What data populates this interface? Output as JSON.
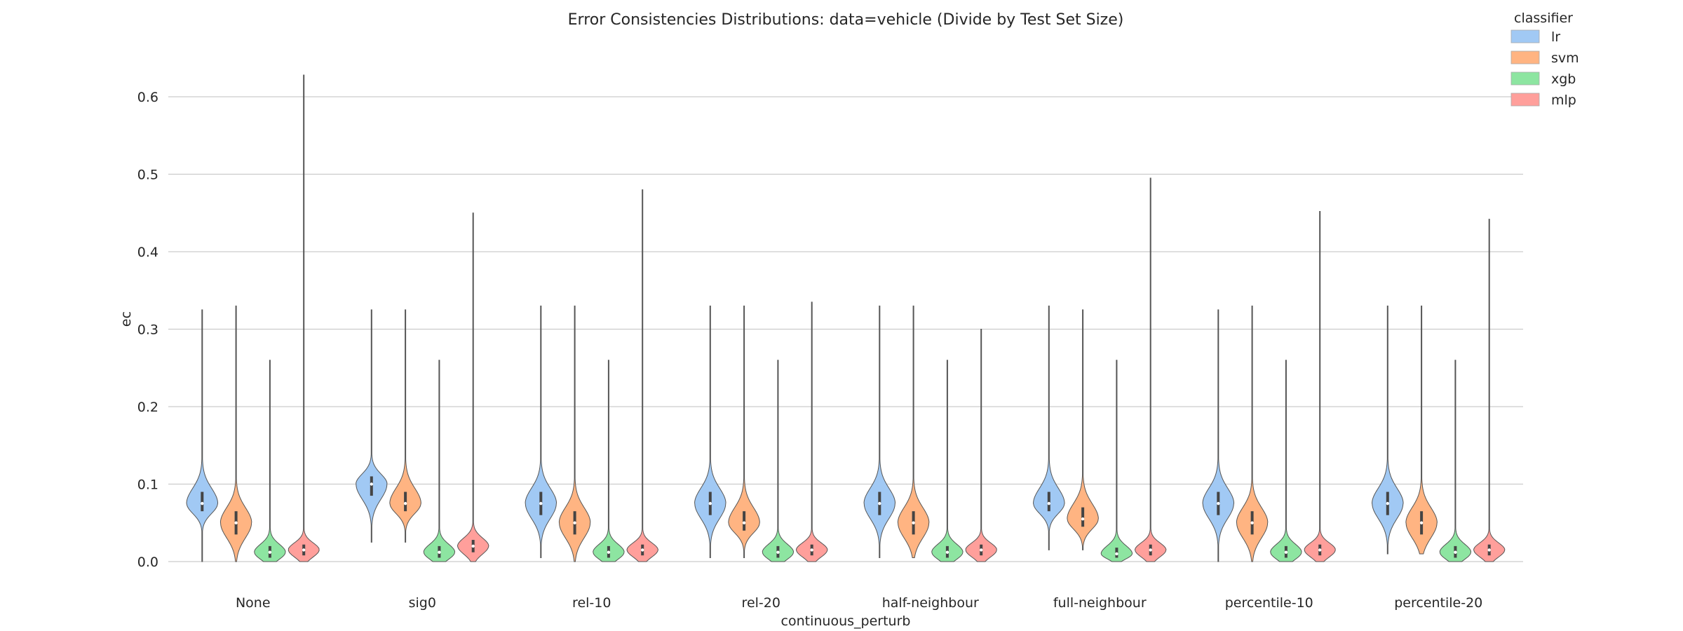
{
  "chart_data": {
    "type": "violin",
    "title": "Error Consistencies Distributions: data=vehicle (Divide by Test Set Size)",
    "xlabel": "continuous_perturb",
    "ylabel": "ec",
    "ylim": [
      -0.04,
      0.67
    ],
    "yticks": [
      "0.0",
      "0.1",
      "0.2",
      "0.3",
      "0.4",
      "0.5",
      "0.6"
    ],
    "grid": "horizontal",
    "legend": {
      "title": "classifier",
      "position": "top-right"
    },
    "categories": [
      "None",
      "sig0",
      "rel-10",
      "rel-20",
      "half-neighbour",
      "full-neighbour",
      "percentile-10",
      "percentile-20"
    ],
    "series": [
      {
        "name": "lr",
        "color": "#a1c9f4",
        "min": [
          0.0,
          0.025,
          0.005,
          0.005,
          0.005,
          0.015,
          0.0,
          0.01
        ],
        "max": [
          0.325,
          0.325,
          0.33,
          0.33,
          0.33,
          0.33,
          0.325,
          0.33
        ],
        "q1": [
          0.065,
          0.085,
          0.06,
          0.06,
          0.06,
          0.065,
          0.06,
          0.06
        ],
        "median": [
          0.075,
          0.1,
          0.075,
          0.075,
          0.075,
          0.075,
          0.075,
          0.075
        ],
        "q3": [
          0.09,
          0.11,
          0.09,
          0.09,
          0.09,
          0.09,
          0.09,
          0.09
        ]
      },
      {
        "name": "svm",
        "color": "#ffb482",
        "min": [
          0.0,
          0.025,
          0.0,
          0.005,
          0.005,
          0.015,
          0.0,
          0.01
        ],
        "max": [
          0.33,
          0.325,
          0.33,
          0.33,
          0.33,
          0.325,
          0.33,
          0.33
        ],
        "q1": [
          0.035,
          0.065,
          0.035,
          0.04,
          0.035,
          0.045,
          0.035,
          0.035
        ],
        "median": [
          0.05,
          0.075,
          0.05,
          0.05,
          0.05,
          0.055,
          0.05,
          0.05
        ],
        "q3": [
          0.065,
          0.09,
          0.065,
          0.065,
          0.065,
          0.07,
          0.065,
          0.065
        ]
      },
      {
        "name": "xgb",
        "color": "#8de5a1",
        "min": [
          0.0,
          0.0,
          0.0,
          0.0,
          0.0,
          0.0,
          0.0,
          0.0
        ],
        "max": [
          0.26,
          0.26,
          0.26,
          0.26,
          0.26,
          0.26,
          0.26,
          0.26
        ],
        "q1": [
          0.005,
          0.005,
          0.005,
          0.005,
          0.005,
          0.005,
          0.005,
          0.005
        ],
        "median": [
          0.012,
          0.012,
          0.012,
          0.012,
          0.012,
          0.01,
          0.012,
          0.012
        ],
        "q3": [
          0.02,
          0.02,
          0.02,
          0.02,
          0.02,
          0.018,
          0.02,
          0.02
        ]
      },
      {
        "name": "mlp",
        "color": "#ff9f9b",
        "min": [
          0.0,
          0.0,
          0.0,
          0.0,
          0.0,
          0.0,
          0.0,
          0.0
        ],
        "max": [
          0.628,
          0.45,
          0.48,
          0.335,
          0.3,
          0.495,
          0.452,
          0.442
        ],
        "q1": [
          0.008,
          0.012,
          0.008,
          0.008,
          0.008,
          0.008,
          0.008,
          0.008
        ],
        "median": [
          0.015,
          0.02,
          0.015,
          0.015,
          0.015,
          0.015,
          0.015,
          0.015
        ],
        "q3": [
          0.022,
          0.028,
          0.022,
          0.022,
          0.022,
          0.022,
          0.022,
          0.022
        ]
      }
    ]
  }
}
